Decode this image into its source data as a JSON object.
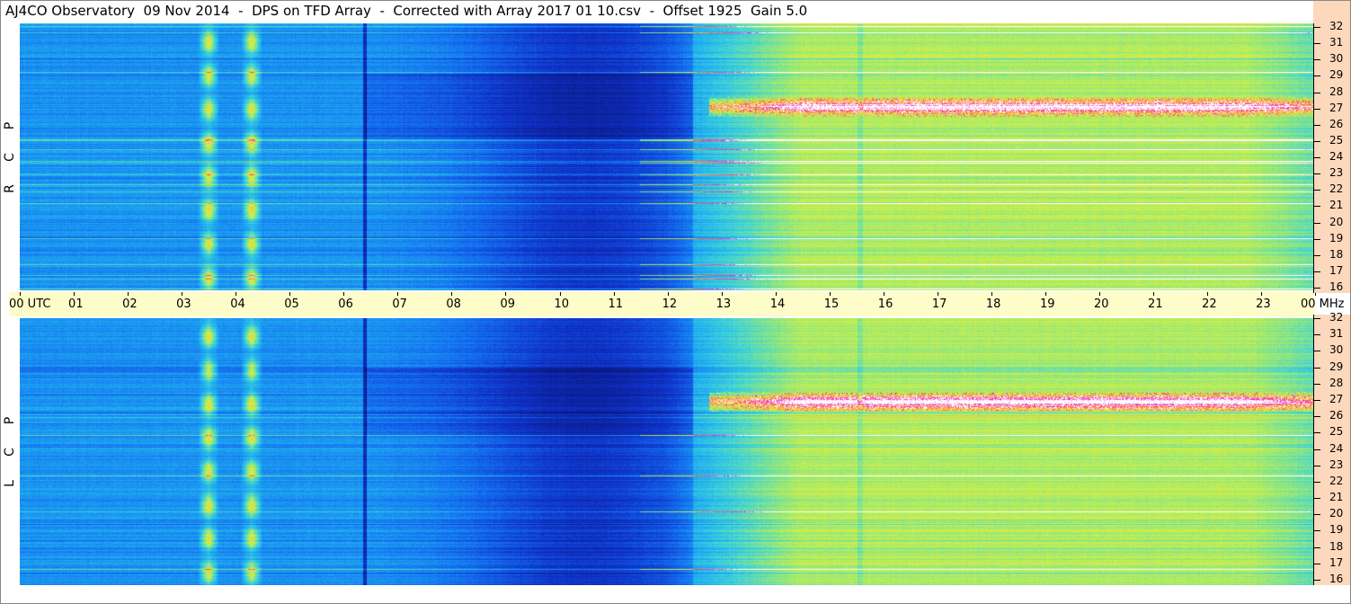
{
  "title": "AJ4CO Observatory  09 Nov 2014  -  DPS on TFD Array  -  Corrected with Array 2017 01 10.csv  -  Offset 1925  Gain 5.0",
  "panels": {
    "top": {
      "letters": [
        "R",
        "C",
        "P"
      ]
    },
    "bottom": {
      "letters": [
        "L",
        "C",
        "P"
      ]
    }
  },
  "time_axis": {
    "labels": [
      "00  UTC",
      "01",
      "02",
      "03",
      "04",
      "05",
      "06",
      "07",
      "08",
      "09",
      "10",
      "11",
      "12",
      "13",
      "14",
      "15",
      "16",
      "17",
      "18",
      "19",
      "20",
      "21",
      "22",
      "23",
      "00 MHz"
    ]
  },
  "freq_axis": {
    "labels": [
      "32",
      "31",
      "30",
      "29",
      "28",
      "27",
      "26",
      "25",
      "24",
      "23",
      "22",
      "21",
      "20",
      "19",
      "18",
      "17",
      "16"
    ]
  },
  "chart_data": [
    {
      "type": "heatmap",
      "panel": "RCP",
      "x_unit": "UTC hours",
      "xlim": [
        0,
        24
      ],
      "y_unit": "MHz",
      "ylim": [
        16,
        32
      ],
      "features": {
        "bright_dense_band_mhz": 27,
        "burst_columns_utc": [
          3.5,
          4.3
        ],
        "dark_vertical_line_utc": 6.4,
        "background_rises_after_utc": 12.5
      }
    },
    {
      "type": "heatmap",
      "panel": "LCP",
      "x_unit": "UTC hours",
      "xlim": [
        0,
        24
      ],
      "y_unit": "MHz",
      "ylim": [
        16,
        32
      ],
      "features": {
        "bright_dense_band_mhz": 27,
        "burst_columns_utc": [
          3.5,
          4.3
        ],
        "dark_vertical_line_utc": 6.4,
        "background_rises_after_utc": 12.5
      }
    }
  ]
}
